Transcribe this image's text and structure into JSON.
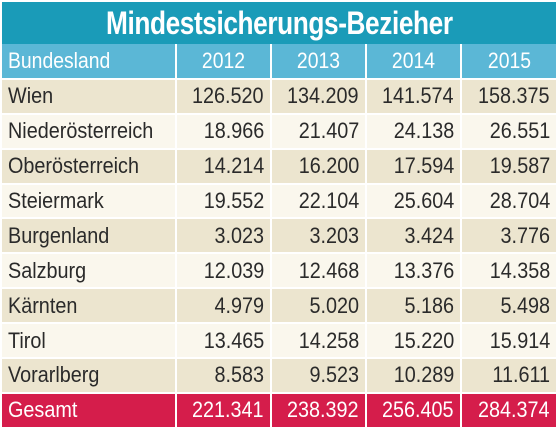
{
  "title": "Mindestsicherungs-Bezieher",
  "chart_data": {
    "type": "table",
    "title": "Mindestsicherungs-Bezieher",
    "columns": [
      "Bundesland",
      "2012",
      "2013",
      "2014",
      "2015"
    ],
    "rows": [
      [
        "Wien",
        "126.520",
        "134.209",
        "141.574",
        "158.375"
      ],
      [
        "Niederösterreich",
        "18.966",
        "21.407",
        "24.138",
        "26.551"
      ],
      [
        "Oberösterreich",
        "14.214",
        "16.200",
        "17.594",
        "19.587"
      ],
      [
        "Steiermark",
        "19.552",
        "22.104",
        "25.604",
        "28.704"
      ],
      [
        "Burgenland",
        "3.023",
        "3.203",
        "3.424",
        "3.776"
      ],
      [
        "Salzburg",
        "12.039",
        "12.468",
        "13.376",
        "14.358"
      ],
      [
        "Kärnten",
        "4.979",
        "5.020",
        "5.186",
        "5.498"
      ],
      [
        "Tirol",
        "13.465",
        "14.258",
        "15.220",
        "15.914"
      ],
      [
        "Vorarlberg",
        "8.583",
        "9.523",
        "10.289",
        "11.611"
      ]
    ],
    "total": [
      "Gesamt",
      "221.341",
      "238.392",
      "256.405",
      "284.374"
    ]
  },
  "colors": {
    "title_bg": "#1a9bb8",
    "header_bg": "#5bb7d6",
    "row_odd": "#ece5cf",
    "row_even": "#faf7ed",
    "total_bg": "#d51d4b"
  }
}
